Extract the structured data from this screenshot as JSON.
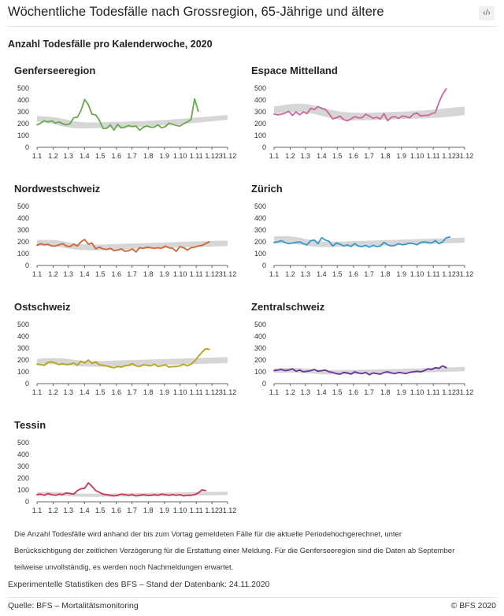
{
  "header": {
    "title": "Wöchentliche Todesfälle nach Grossregion, 65-Jährige und ältere",
    "embed_label": "‹/›",
    "subtitle": "Anzahl Todesfälle pro Kalenderwoche, 2020"
  },
  "colors": {
    "band": "#d6d6d6",
    "axis": "#666666"
  },
  "chart_data": [
    {
      "type": "line",
      "title": "Genferseeregion",
      "color": "#6aa84f",
      "x_tick_labels": [
        "1.1",
        "1.2",
        "1.3",
        "1.4",
        "1.5",
        "1.6",
        "1.7",
        "1.8",
        "1.9",
        "1.10",
        "1.11",
        "1.12",
        "31.12"
      ],
      "y_ticks": [
        0,
        100,
        200,
        300,
        400,
        500
      ],
      "ylim": [
        0,
        500
      ],
      "weeks": 53,
      "band_lower": [
        215,
        213,
        210,
        205,
        200,
        193,
        185,
        177,
        171,
        166,
        163,
        161,
        160,
        160,
        160,
        161,
        162,
        163,
        164,
        165,
        166,
        167,
        167,
        168,
        169,
        170,
        171,
        172,
        174,
        175,
        176,
        178,
        180,
        182,
        184,
        186,
        188,
        190,
        193,
        195,
        198,
        200,
        203,
        206,
        209,
        212,
        215,
        218,
        221,
        224,
        227,
        230,
        233
      ],
      "band_upper": [
        265,
        264,
        262,
        260,
        257,
        253,
        248,
        242,
        235,
        228,
        222,
        217,
        213,
        211,
        210,
        210,
        210,
        211,
        212,
        213,
        214,
        215,
        216,
        216,
        217,
        218,
        219,
        220,
        221,
        222,
        223,
        225,
        226,
        228,
        230,
        232,
        234,
        236,
        238,
        241,
        243,
        246,
        248,
        251,
        253,
        256,
        258,
        261,
        263,
        266,
        268,
        271,
        273
      ],
      "values": [
        190,
        205,
        225,
        215,
        225,
        205,
        215,
        200,
        190,
        200,
        250,
        255,
        310,
        405,
        360,
        280,
        275,
        230,
        160,
        160,
        190,
        145,
        195,
        165,
        170,
        185,
        175,
        180,
        145,
        170,
        180,
        170,
        170,
        190,
        165,
        175,
        205,
        195,
        185,
        180,
        200,
        215,
        235,
        410,
        305
      ]
    },
    {
      "type": "line",
      "title": "Espace Mittelland",
      "color": "#cc6699",
      "x_tick_labels": [
        "1.1",
        "1.2",
        "1.3",
        "1.4",
        "1.5",
        "1.6",
        "1.7",
        "1.8",
        "1.9",
        "1.10",
        "1.11",
        "1.12",
        "31.12"
      ],
      "y_ticks": [
        0,
        100,
        200,
        300,
        400,
        500
      ],
      "ylim": [
        0,
        500
      ],
      "weeks": 53,
      "band_lower": [
        285,
        288,
        291,
        294,
        296,
        298,
        299,
        298,
        296,
        292,
        287,
        281,
        274,
        266,
        258,
        250,
        243,
        238,
        234,
        231,
        229,
        228,
        228,
        228,
        228,
        229,
        230,
        231,
        232,
        233,
        234,
        235,
        236,
        237,
        238,
        239,
        240,
        241,
        242,
        243,
        244,
        245,
        246,
        248,
        250,
        252,
        254,
        257,
        260,
        263,
        266,
        269,
        272
      ],
      "band_upper": [
        345,
        350,
        355,
        360,
        364,
        367,
        369,
        369,
        368,
        365,
        360,
        354,
        347,
        339,
        330,
        322,
        314,
        308,
        303,
        299,
        296,
        294,
        293,
        292,
        292,
        292,
        293,
        294,
        295,
        296,
        297,
        298,
        299,
        300,
        301,
        302,
        303,
        305,
        307,
        309,
        311,
        313,
        315,
        318,
        321,
        324,
        327,
        330,
        333,
        336,
        339,
        342,
        345
      ],
      "values": [
        280,
        275,
        280,
        290,
        305,
        270,
        300,
        275,
        300,
        285,
        330,
        320,
        345,
        330,
        320,
        285,
        240,
        250,
        265,
        235,
        225,
        240,
        260,
        250,
        250,
        280,
        265,
        245,
        255,
        240,
        285,
        225,
        255,
        260,
        245,
        265,
        260,
        250,
        280,
        290,
        265,
        270,
        270,
        285,
        295,
        380,
        450,
        495
      ]
    },
    {
      "type": "line",
      "title": "Nordwestschweiz",
      "color": "#cc6633",
      "x_tick_labels": [
        "1.1",
        "1.2",
        "1.3",
        "1.4",
        "1.5",
        "1.6",
        "1.7",
        "1.8",
        "1.9",
        "1.10",
        "1.11",
        "1.12",
        "31.12"
      ],
      "y_ticks": [
        0,
        100,
        200,
        300,
        400,
        500
      ],
      "ylim": [
        0,
        500
      ],
      "weeks": 53,
      "band_lower": [
        165,
        166,
        166,
        165,
        163,
        160,
        156,
        151,
        146,
        141,
        137,
        134,
        132,
        130,
        129,
        129,
        129,
        129,
        130,
        131,
        132,
        133,
        134,
        135,
        136,
        137,
        138,
        139,
        140,
        141,
        142,
        143,
        144,
        145,
        146,
        147,
        148,
        149,
        150,
        151,
        152,
        153,
        154,
        155,
        156,
        157,
        158,
        159,
        160,
        161,
        162,
        163,
        164
      ],
      "band_upper": [
        215,
        216,
        217,
        217,
        216,
        214,
        210,
        205,
        199,
        193,
        188,
        184,
        181,
        179,
        178,
        177,
        177,
        177,
        178,
        179,
        180,
        181,
        182,
        183,
        184,
        185,
        186,
        187,
        188,
        189,
        190,
        191,
        192,
        193,
        194,
        195,
        196,
        197,
        198,
        199,
        200,
        201,
        202,
        203,
        204,
        205,
        206,
        207,
        208,
        209,
        210,
        211,
        212
      ],
      "values": [
        170,
        185,
        175,
        180,
        165,
        165,
        175,
        185,
        165,
        160,
        180,
        165,
        200,
        220,
        180,
        190,
        140,
        155,
        140,
        135,
        145,
        125,
        130,
        140,
        120,
        125,
        140,
        115,
        150,
        145,
        155,
        150,
        145,
        150,
        145,
        165,
        150,
        145,
        120,
        160,
        150,
        130,
        150,
        155,
        165,
        170,
        185,
        200
      ]
    },
    {
      "type": "line",
      "title": "Zürich",
      "color": "#3399cc",
      "x_tick_labels": [
        "1.1",
        "1.2",
        "1.3",
        "1.4",
        "1.5",
        "1.6",
        "1.7",
        "1.8",
        "1.9",
        "1.10",
        "1.11",
        "1.12",
        "31.12"
      ],
      "y_ticks": [
        0,
        100,
        200,
        300,
        400,
        500
      ],
      "ylim": [
        0,
        500
      ],
      "weeks": 53,
      "band_lower": [
        185,
        186,
        186,
        186,
        185,
        183,
        180,
        176,
        171,
        166,
        162,
        159,
        157,
        156,
        156,
        156,
        156,
        157,
        158,
        159,
        160,
        161,
        162,
        163,
        164,
        165,
        166,
        167,
        168,
        169,
        170,
        171,
        172,
        173,
        174,
        175,
        176,
        177,
        178,
        179,
        180,
        181,
        182,
        183,
        184,
        185,
        186,
        187,
        188,
        189,
        190,
        191,
        192
      ],
      "band_upper": [
        245,
        247,
        248,
        248,
        247,
        245,
        241,
        235,
        228,
        221,
        215,
        210,
        206,
        203,
        202,
        201,
        201,
        201,
        202,
        203,
        204,
        205,
        206,
        207,
        208,
        209,
        210,
        211,
        212,
        213,
        214,
        215,
        216,
        217,
        218,
        219,
        220,
        221,
        222,
        223,
        224,
        225,
        226,
        227,
        228,
        229,
        230,
        231,
        232,
        233,
        234,
        235,
        236
      ],
      "values": [
        195,
        200,
        210,
        195,
        185,
        190,
        195,
        200,
        185,
        175,
        210,
        215,
        185,
        235,
        215,
        205,
        165,
        190,
        180,
        165,
        175,
        160,
        185,
        165,
        160,
        170,
        155,
        170,
        160,
        165,
        195,
        175,
        165,
        170,
        185,
        175,
        180,
        190,
        185,
        175,
        195,
        200,
        195,
        190,
        210,
        185,
        200,
        235,
        240
      ]
    },
    {
      "type": "line",
      "title": "Ostschweiz",
      "color": "#b5a617",
      "x_tick_labels": [
        "1.1",
        "1.2",
        "1.3",
        "1.4",
        "1.5",
        "1.6",
        "1.7",
        "1.8",
        "1.9",
        "1.10",
        "1.11",
        "1.12",
        "31.12"
      ],
      "y_ticks": [
        0,
        100,
        200,
        300,
        400,
        500
      ],
      "ylim": [
        0,
        500
      ],
      "weeks": 53,
      "band_lower": [
        160,
        161,
        162,
        163,
        163,
        163,
        162,
        160,
        157,
        154,
        151,
        148,
        146,
        145,
        144,
        143,
        143,
        143,
        143,
        144,
        145,
        145,
        146,
        147,
        148,
        148,
        149,
        150,
        151,
        152,
        153,
        154,
        155,
        156,
        157,
        158,
        159,
        160,
        160,
        161,
        162,
        163,
        164,
        165,
        166,
        167,
        168,
        169,
        170,
        171,
        172,
        173,
        174
      ],
      "band_upper": [
        210,
        212,
        214,
        215,
        216,
        216,
        215,
        213,
        210,
        206,
        202,
        198,
        195,
        193,
        192,
        191,
        191,
        191,
        192,
        193,
        194,
        195,
        196,
        197,
        198,
        198,
        199,
        200,
        201,
        202,
        203,
        204,
        205,
        206,
        207,
        208,
        209,
        210,
        211,
        212,
        213,
        214,
        215,
        216,
        217,
        218,
        219,
        220,
        221,
        222,
        223,
        224,
        225
      ],
      "values": [
        165,
        160,
        155,
        180,
        185,
        175,
        160,
        170,
        160,
        165,
        175,
        155,
        190,
        175,
        200,
        170,
        185,
        160,
        155,
        150,
        140,
        135,
        145,
        140,
        150,
        155,
        170,
        150,
        145,
        160,
        155,
        150,
        165,
        145,
        150,
        160,
        140,
        145,
        145,
        150,
        165,
        150,
        165,
        190,
        230,
        265,
        295,
        290
      ]
    },
    {
      "type": "line",
      "title": "Zentralschweiz",
      "color": "#663399",
      "x_tick_labels": [
        "1.1",
        "1.2",
        "1.3",
        "1.4",
        "1.5",
        "1.6",
        "1.7",
        "1.8",
        "1.9",
        "1.10",
        "1.11",
        "1.12",
        "31.12"
      ],
      "y_ticks": [
        0,
        100,
        200,
        300,
        400,
        500
      ],
      "ylim": [
        0,
        500
      ],
      "weeks": 53,
      "band_lower": [
        90,
        91,
        92,
        93,
        93,
        93,
        93,
        92,
        90,
        88,
        86,
        84,
        82,
        80,
        79,
        78,
        78,
        78,
        78,
        79,
        79,
        80,
        80,
        81,
        81,
        82,
        82,
        83,
        83,
        84,
        84,
        85,
        85,
        86,
        87,
        88,
        89,
        90,
        91,
        92,
        93,
        94,
        95,
        96,
        97,
        98,
        99,
        100,
        101,
        102,
        103,
        104,
        105
      ],
      "band_upper": [
        128,
        130,
        131,
        132,
        133,
        133,
        132,
        131,
        129,
        127,
        124,
        121,
        119,
        117,
        116,
        115,
        115,
        115,
        115,
        116,
        116,
        117,
        117,
        118,
        118,
        119,
        119,
        120,
        120,
        121,
        121,
        122,
        122,
        123,
        124,
        125,
        126,
        127,
        128,
        129,
        130,
        131,
        132,
        133,
        134,
        135,
        136,
        137,
        138,
        139,
        140,
        141,
        142
      ],
      "values": [
        110,
        115,
        120,
        110,
        115,
        125,
        105,
        115,
        100,
        105,
        110,
        120,
        105,
        110,
        115,
        100,
        95,
        85,
        80,
        95,
        90,
        80,
        100,
        90,
        85,
        95,
        75,
        90,
        85,
        80,
        95,
        100,
        90,
        85,
        95,
        90,
        85,
        95,
        100,
        105,
        100,
        110,
        125,
        120,
        135,
        130,
        150,
        135
      ]
    },
    {
      "type": "line",
      "title": "Tessin",
      "color": "#cc3355",
      "x_tick_labels": [
        "1.1",
        "1.2",
        "1.3",
        "1.4",
        "1.5",
        "1.6",
        "1.7",
        "1.8",
        "1.9",
        "1.10",
        "1.11",
        "1.12",
        "31.12"
      ],
      "y_ticks": [
        0,
        100,
        200,
        300,
        400,
        500
      ],
      "ylim": [
        0,
        500
      ],
      "weeks": 53,
      "band_lower": [
        52,
        53,
        53,
        53,
        53,
        52,
        51,
        50,
        48,
        46,
        45,
        44,
        43,
        42,
        42,
        42,
        42,
        42,
        43,
        43,
        43,
        44,
        44,
        44,
        45,
        45,
        45,
        46,
        46,
        46,
        47,
        47,
        47,
        48,
        48,
        49,
        49,
        50,
        50,
        51,
        51,
        52,
        52,
        53,
        53,
        54,
        54,
        55,
        55,
        56,
        56,
        57,
        57
      ],
      "band_upper": [
        80,
        82,
        83,
        84,
        84,
        83,
        82,
        80,
        78,
        75,
        73,
        71,
        70,
        69,
        68,
        68,
        68,
        68,
        69,
        69,
        70,
        70,
        71,
        71,
        72,
        72,
        73,
        73,
        74,
        74,
        75,
        75,
        76,
        76,
        77,
        77,
        78,
        78,
        79,
        79,
        80,
        80,
        81,
        81,
        82,
        82,
        83,
        83,
        84,
        84,
        85,
        85,
        86
      ],
      "values": [
        60,
        65,
        55,
        70,
        60,
        55,
        65,
        60,
        75,
        70,
        65,
        95,
        110,
        115,
        160,
        130,
        95,
        80,
        65,
        60,
        55,
        50,
        55,
        65,
        60,
        55,
        60,
        50,
        55,
        60,
        55,
        55,
        60,
        55,
        65,
        60,
        55,
        60,
        55,
        60,
        50,
        55,
        55,
        60,
        75,
        100,
        95
      ]
    }
  ],
  "footnote": "Die Anzahl Todesfälle wird anhand der bis zum Vortag gemeldeten Fälle für die aktuelle Periodehochgerechnet, unter Berücksichtigung der zeitlichen Verzögerung für die Erstattung einer Meldung. Für die Genferseeregion sind die Daten ab September teilweise unvollständig, es werden noch Nachmeldungen erwartet.",
  "meta": "Experimentelle Statistiken des BFS – Stand der Datenbank: 24.11.2020",
  "source": "Quelle: BFS – Mortalitätsmonitoring",
  "copyright": "© BFS 2020"
}
